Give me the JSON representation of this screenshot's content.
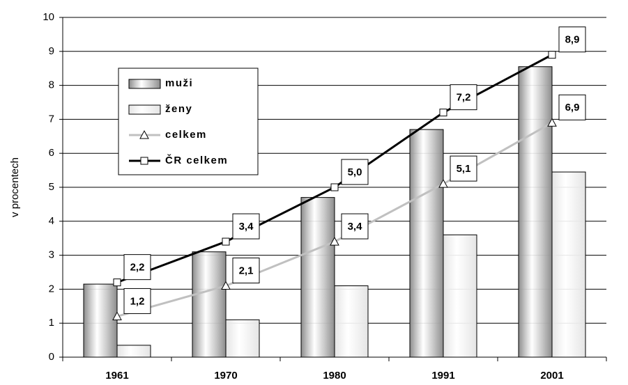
{
  "chart_data": {
    "type": "bar",
    "y_label": "v procentech",
    "categories": [
      "1961",
      "1970",
      "1980",
      "1991",
      "2001"
    ],
    "series": [
      {
        "name": "muži",
        "type": "bar",
        "color": "#8c8c8c",
        "values": [
          2.15,
          3.1,
          4.7,
          6.7,
          8.55
        ]
      },
      {
        "name": "ženy",
        "type": "bar",
        "color": "#e4e4e4",
        "values": [
          0.35,
          1.1,
          2.1,
          3.6,
          5.45
        ]
      },
      {
        "name": "celkem",
        "type": "line",
        "color": "#c0c0c0",
        "marker": "triangle",
        "values": [
          1.2,
          2.1,
          3.4,
          5.1,
          6.9
        ],
        "value_labels": [
          "1,2",
          "2,1",
          "3,4",
          "5,1",
          "6,9"
        ]
      },
      {
        "name": "ČR celkem",
        "type": "line",
        "color": "#000000",
        "marker": "square",
        "values": [
          2.2,
          3.4,
          5.0,
          7.2,
          8.9
        ],
        "value_labels": [
          "2,2",
          "3,4",
          "5,0",
          "7,2",
          "8,9"
        ]
      }
    ],
    "ylim": [
      0,
      10
    ],
    "yticks": [
      0,
      1,
      2,
      3,
      4,
      5,
      6,
      7,
      8,
      9,
      10
    ],
    "grid": true,
    "legend": "upper left"
  }
}
